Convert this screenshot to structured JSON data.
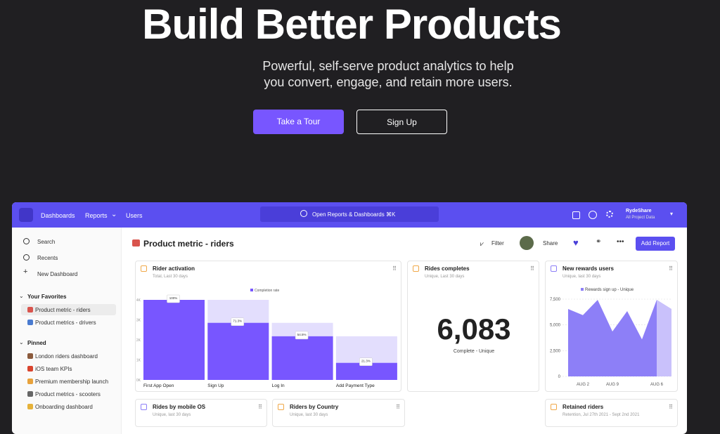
{
  "hero": {
    "title": "Build Better Products",
    "subtitle": "Powerful, self-serve product analytics to help you convert, engage, and retain more users.",
    "buttons": [
      "Take a Tour",
      "Sign Up"
    ]
  },
  "nav": {
    "links": [
      "Dashboards",
      "Reports",
      "Users"
    ],
    "search": "Open Reports & Dashboards ⌘K",
    "project": "RydeShare",
    "project_scope": "All Project Data"
  },
  "sidebar": {
    "actions": [
      "Search",
      "Recents",
      "New Dashboard"
    ],
    "favorites_title": "Your Favorites",
    "favorites": [
      "Product metric - riders",
      "Product metrics - drivers"
    ],
    "pinned_title": "Pinned",
    "pinned": [
      "London riders dashboard",
      "iOS team KPIs",
      "Premium membership launch",
      "Product metrics - scooters",
      "Onboarding dashboard"
    ]
  },
  "dashboard": {
    "title": "Product metric - riders",
    "actions": [
      "Filter",
      "Share",
      "Add Report"
    ],
    "cards": [
      {
        "title": "Rider activation",
        "subtitle": "Total, Last 30 days",
        "chart": {
          "type": "bar",
          "legend": "Completion rate",
          "color": "#7856ff",
          "categories": [
            "First App Open",
            "Sign Up",
            "Log In",
            "Add Payment Type"
          ],
          "values": [
            100,
            71.3,
            54.5,
            21.3
          ],
          "value_labels": [
            "100%",
            "71.3%",
            "54.5%",
            "21.3%"
          ],
          "ylim": [
            0,
            100
          ],
          "yticks": [
            {
              "value": 0,
              "label": "0K"
            },
            {
              "value": 25,
              "label": "1K"
            },
            {
              "value": 50,
              "label": "2K"
            },
            {
              "value": 75,
              "label": "3K"
            },
            {
              "value": 100,
              "label": "4K"
            }
          ]
        }
      },
      {
        "title": "Rides completes",
        "subtitle": "Unique, Last 30 days",
        "metric": "6,083",
        "metric_label": "Complete - Unique"
      },
      {
        "title": "New rewards users",
        "subtitle": "Unique, last 30 days",
        "chart": {
          "type": "area",
          "legend": "Rewards sign up - Unique",
          "color": "#8d7ff7",
          "categories": [
            null,
            "AUG 2",
            null,
            "AUG 9",
            null,
            null,
            "AUG 6",
            null
          ],
          "values": [
            6545,
            5950,
            7430,
            4360,
            6340,
            3600,
            7430,
            6540
          ],
          "ylim": [
            0,
            7500
          ],
          "yticks": [
            0,
            {
              "value": 2500,
              "label": "2,500"
            },
            {
              "value": 5000,
              "label": "5,000"
            },
            {
              "value": 7500,
              "label": "7,500"
            }
          ],
          "grid": true
        }
      },
      {
        "title": "Rides by mobile OS",
        "subtitle": "Unique, last 30 days"
      },
      {
        "title": "Riders by Country",
        "subtitle": "Unique, last 30 days"
      },
      {
        "title": "Retained riders",
        "subtitle": "Retention, Jul 27th 2021 - Sept 2nd 2021"
      }
    ]
  }
}
